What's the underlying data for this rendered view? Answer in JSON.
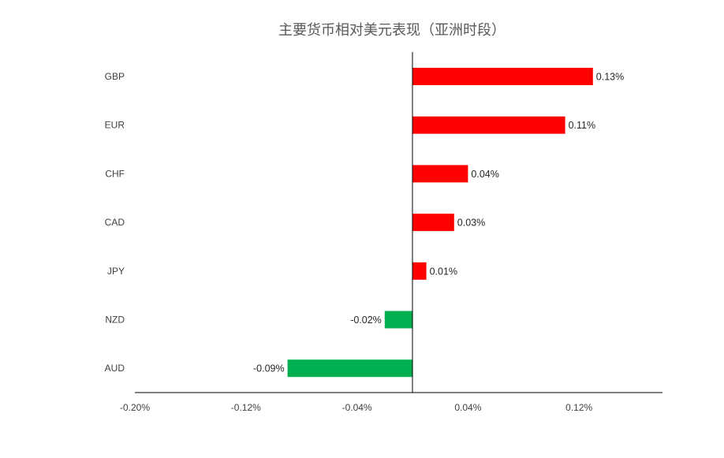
{
  "chart_data": {
    "type": "bar",
    "orientation": "horizontal",
    "title": "主要货币相对美元表现（亚洲时段）",
    "xlabel": "",
    "ylabel": "",
    "categories": [
      "GBP",
      "EUR",
      "CHF",
      "CAD",
      "JPY",
      "NZD",
      "AUD"
    ],
    "values": [
      0.13,
      0.11,
      0.04,
      0.03,
      0.01,
      -0.02,
      -0.09
    ],
    "data_labels": [
      "0.13%",
      "0.11%",
      "0.04%",
      "0.03%",
      "0.01%",
      "-0.02%",
      "-0.09%"
    ],
    "xlim": [
      -0.2,
      0.18
    ],
    "xticks": [
      -0.2,
      -0.12,
      -0.04,
      0.04,
      0.12
    ],
    "xtick_labels": [
      "-0.20%",
      "-0.12%",
      "-0.04%",
      "0.04%",
      "0.12%"
    ],
    "colors": {
      "positive": "#ff0000",
      "negative": "#00b050",
      "axis": "#000000"
    },
    "grid": false,
    "legend": "none"
  }
}
